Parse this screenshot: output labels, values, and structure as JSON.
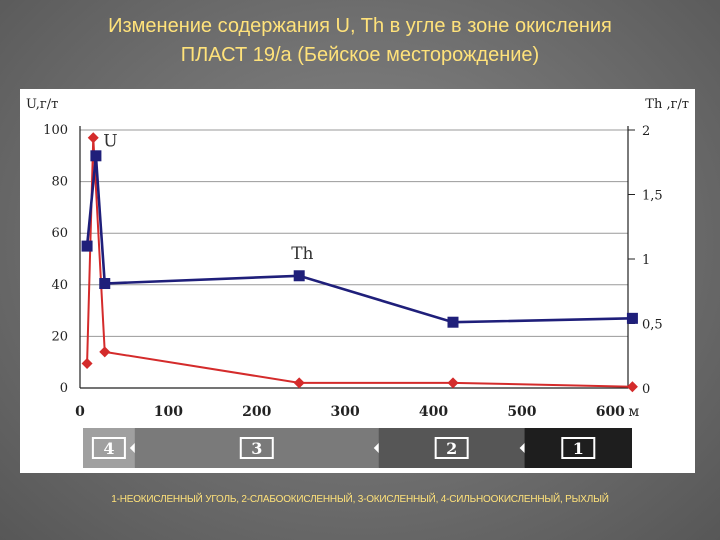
{
  "slide": {
    "title_line1": "Изменение содержания U, Th в угле  в зоне окисления",
    "title_line2": "ПЛАСТ 19/а (Бейское месторождение)",
    "caption": "1-НЕОКИСЛЕННЫЙ УГОЛЬ, 2-СЛАБООКИСЛЕННЫЙ, 3-ОКИСЛЕННЫЙ, 4-СИЛЬНООКИСЛЕННЫЙ, РЫХЛЫЙ"
  },
  "chart_data": {
    "type": "line",
    "ylabel_left": "U,г/т",
    "ylabel_right": "Th ,г/т",
    "x_unit": "м",
    "xlim": [
      0,
      620
    ],
    "ylim_left": [
      0,
      100
    ],
    "ylim_right": [
      0,
      2
    ],
    "x_ticks": [
      0,
      100,
      200,
      300,
      400,
      500,
      600
    ],
    "y_ticks_left": [
      0,
      20,
      40,
      60,
      80,
      100
    ],
    "y_ticks_right": [
      {
        "value": 0,
        "label": "0"
      },
      {
        "value": 0.5,
        "label": "0,5"
      },
      {
        "value": 1,
        "label": "1"
      },
      {
        "value": 1.5,
        "label": "1,5"
      },
      {
        "value": 2,
        "label": "2"
      }
    ],
    "grid": true,
    "series": [
      {
        "name": "U",
        "axis": "left",
        "color": "#d42b2b",
        "marker": "diamond",
        "x": [
          8,
          15,
          28,
          248,
          422,
          625
        ],
        "y": [
          9.5,
          97,
          14,
          2,
          2,
          0.5
        ]
      },
      {
        "name": "Th",
        "axis": "right",
        "color": "#1f1f7a",
        "marker": "square",
        "x": [
          8,
          18,
          28,
          248,
          422,
          625
        ],
        "y": [
          1.1,
          1.8,
          0.81,
          0.87,
          0.51,
          0.54
        ]
      }
    ],
    "zones": [
      {
        "label": "4",
        "x0": 0,
        "x1": 62,
        "color": "#a0a0a0"
      },
      {
        "label": "3",
        "x0": 62,
        "x1": 338,
        "color": "#7a7a7a"
      },
      {
        "label": "2",
        "x0": 338,
        "x1": 503,
        "color": "#565656"
      },
      {
        "label": "1",
        "x0": 503,
        "x1": 660,
        "color": "#1e1e1e"
      }
    ]
  }
}
